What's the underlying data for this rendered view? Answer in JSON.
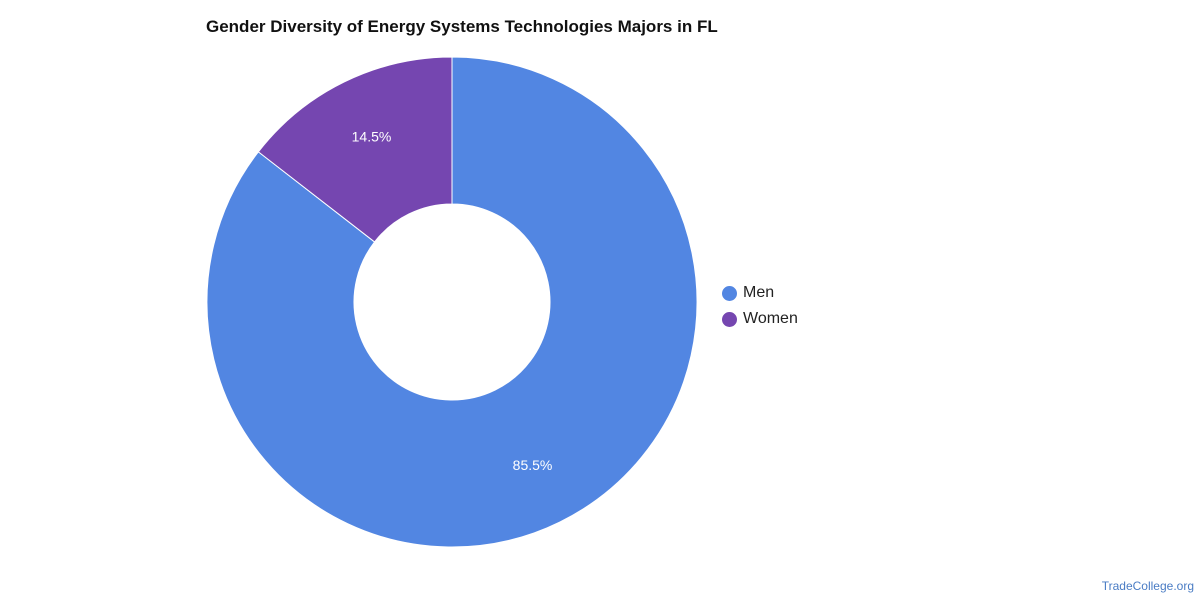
{
  "chart_data": {
    "type": "pie",
    "variant": "donut",
    "title": "Gender Diversity of Energy Systems Technologies Majors in FL",
    "categories": [
      "Men",
      "Women"
    ],
    "values": [
      85.5,
      14.5
    ],
    "value_labels": [
      "85.5%",
      "14.5%"
    ],
    "colors": [
      "#5286e2",
      "#7546b0"
    ],
    "legend_position": "right"
  },
  "credit": "TradeCollege.org"
}
